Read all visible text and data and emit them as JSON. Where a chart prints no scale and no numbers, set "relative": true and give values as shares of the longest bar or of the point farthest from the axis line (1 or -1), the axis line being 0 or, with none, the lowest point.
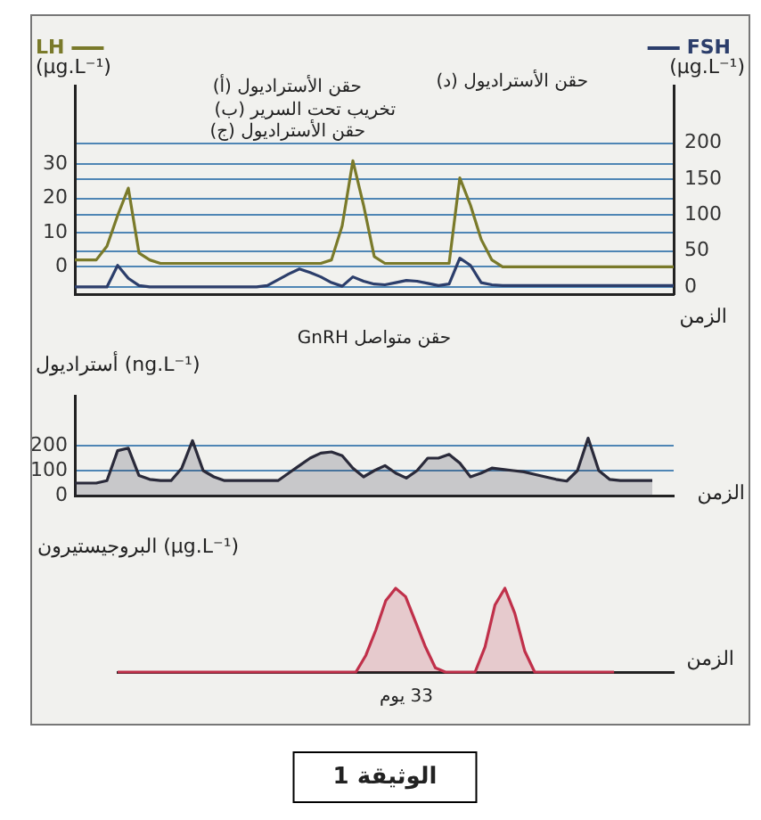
{
  "chart_data": [
    {
      "type": "line",
      "categories": [
        null,
        null,
        null,
        null,
        null,
        null,
        null,
        null,
        null,
        null,
        null,
        null,
        null,
        null,
        null,
        null,
        null,
        null,
        null,
        null,
        null,
        null,
        null,
        null,
        null,
        null,
        null,
        null,
        null,
        null,
        null,
        null,
        null,
        null,
        null,
        null,
        null,
        null,
        null,
        null,
        null,
        null,
        null,
        null,
        null,
        null,
        null,
        null,
        null,
        null,
        null,
        null,
        null,
        null,
        null,
        null,
        null
      ],
      "series": [
        {
          "name": "LH",
          "color": "#7a7a2a",
          "values": [
            2,
            2,
            2,
            6,
            15,
            23,
            4,
            2,
            1,
            1,
            1,
            1,
            1,
            1,
            1,
            1,
            1,
            1,
            1,
            1,
            1,
            1,
            1,
            1,
            2,
            12,
            31,
            18,
            3,
            1,
            1,
            1,
            1,
            1,
            1,
            1,
            26,
            18,
            8,
            2,
            0,
            0,
            0,
            0,
            0,
            0,
            0,
            0,
            0,
            0,
            0,
            0,
            0,
            0,
            0,
            0,
            0
          ]
        },
        {
          "name": "FSH",
          "color": "#2c3e6b",
          "axis": "y2",
          "values": [
            0,
            0,
            0,
            0,
            30,
            12,
            2,
            0,
            0,
            0,
            0,
            0,
            0,
            0,
            0,
            0,
            0,
            0,
            2,
            10,
            18,
            25,
            20,
            14,
            6,
            1,
            14,
            8,
            4,
            3,
            6,
            9,
            8,
            5,
            2,
            4,
            40,
            30,
            6,
            3,
            2,
            2,
            2,
            2,
            2,
            2,
            2,
            2,
            2,
            2,
            2,
            2,
            2,
            2,
            2,
            2,
            2
          ]
        }
      ],
      "ylim": [
        -8,
        53
      ],
      "yticks": [
        0,
        10,
        20,
        30
      ],
      "y2lim": [
        -10,
        280
      ],
      "y2ticks": [
        0,
        50,
        100,
        150,
        200
      ],
      "ylabel": "(µg.L⁻¹)",
      "y2label": "(µg.L⁻¹)",
      "xlabel": "الزمن",
      "grid": "y",
      "legend": "top",
      "tick_labels": "y",
      "annotations": [
        "حقن الأستراديول (أ)",
        "تخريب تحت السرير (ب)",
        "حقن الأستراديول (ج)",
        "حقن الأستراديول (د)"
      ]
    },
    {
      "type": "area",
      "categories": [
        null,
        null,
        null,
        null,
        null,
        null,
        null,
        null,
        null,
        null,
        null,
        null,
        null,
        null,
        null,
        null,
        null,
        null,
        null,
        null,
        null,
        null,
        null,
        null,
        null,
        null,
        null,
        null,
        null,
        null,
        null,
        null,
        null,
        null,
        null,
        null,
        null,
        null,
        null,
        null,
        null,
        null,
        null,
        null,
        null,
        null,
        null,
        null,
        null,
        null,
        null,
        null,
        null,
        null,
        null,
        null,
        null
      ],
      "series": [
        {
          "color": "#2a2a3a",
          "values": [
            50,
            50,
            50,
            60,
            180,
            190,
            80,
            65,
            60,
            60,
            110,
            220,
            100,
            75,
            60,
            60,
            60,
            60,
            60,
            60,
            90,
            120,
            150,
            170,
            175,
            160,
            110,
            75,
            100,
            120,
            90,
            70,
            100,
            150,
            150,
            165,
            130,
            75,
            90,
            110,
            105,
            100,
            95,
            85,
            75,
            65,
            58,
            100,
            230,
            100,
            65,
            60,
            60,
            60,
            60,
            null,
            null
          ]
        }
      ],
      "ylim": [
        0,
        400
      ],
      "yticks": [
        0,
        100,
        200
      ],
      "ylabel": "أستراديول (ng.L⁻¹)",
      "xlabel": "الزمن",
      "grid": "y",
      "tick_labels": "y",
      "annotations": [
        "حقن متواصل GnRH"
      ]
    },
    {
      "type": "area",
      "categories": [
        null,
        null,
        null,
        null,
        null,
        null,
        null,
        null,
        null,
        null,
        null,
        null,
        null,
        null,
        null,
        null,
        null,
        null,
        null,
        null,
        null,
        null,
        null,
        null,
        null,
        null,
        null,
        null,
        null,
        null,
        null,
        null,
        null,
        null,
        null,
        null,
        null,
        null,
        null,
        null,
        null,
        null,
        null,
        null,
        null,
        null,
        null,
        null,
        null,
        null,
        null,
        null,
        null,
        null,
        null,
        null,
        null
      ],
      "series": [
        {
          "color": "#c0304a",
          "values": [
            0,
            0,
            0,
            0,
            0,
            0,
            0,
            0,
            0,
            0,
            0,
            0,
            0,
            0,
            0,
            0,
            0,
            0,
            0,
            0,
            0,
            0,
            0,
            0,
            0,
            0.2,
            0.5,
            0.85,
            1,
            0.9,
            0.6,
            0.3,
            0.05,
            0,
            0,
            0,
            0,
            0.3,
            0.8,
            1,
            0.7,
            0.25,
            0,
            0,
            0,
            0,
            0,
            0,
            0,
            0,
            0,
            null,
            null,
            null,
            null,
            null,
            null
          ]
        }
      ],
      "relative": true,
      "ylabel": "البروجيستيرون (µg.L⁻¹)",
      "xlabel": "الزمن",
      "tick_labels": false,
      "annotations": [
        "33 يوم",
        "الوثيقة 1"
      ]
    }
  ]
}
